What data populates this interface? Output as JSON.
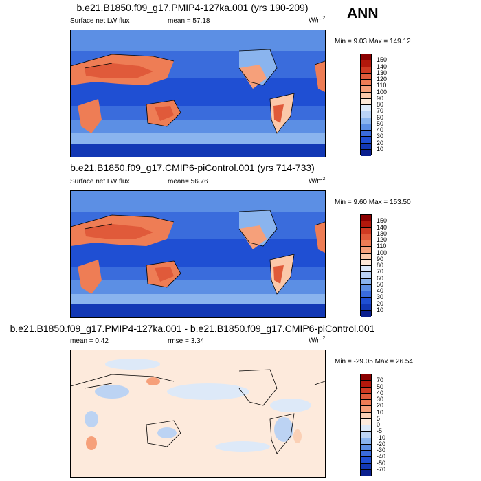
{
  "season": "ANN",
  "panels": [
    {
      "title": "b.e21.B1850.f09_g17.PMIP4-127ka.001 (yrs 190-209)",
      "left_label": "Surface net LW flux",
      "center_label": "mean =   57.18",
      "units": "W/m",
      "units_sup": "2",
      "minmax": "Min =   9.03 Max = 149.12",
      "colorbar": {
        "levels": [
          "150",
          "140",
          "130",
          "120",
          "110",
          "100",
          "90",
          "80",
          "70",
          "60",
          "50",
          "40",
          "30",
          "20",
          "10"
        ],
        "colors": [
          "#8b0000",
          "#b2180b",
          "#cf3a22",
          "#e05a3a",
          "#ee7d55",
          "#f6a07a",
          "#fbc8a9",
          "#fde8d8",
          "#dce9fa",
          "#b9d2f6",
          "#8ab4ee",
          "#5c8fe4",
          "#3a6cdc",
          "#1f4fd3",
          "#1238b5",
          "#0a1f8f"
        ]
      }
    },
    {
      "title": "b.e21.B1850.f09_g17.CMIP6-piControl.001 (yrs 714-733)",
      "left_label": "Surface net LW flux",
      "center_label": "mean=   56.76",
      "units": "W/m",
      "units_sup": "2",
      "minmax": "Min =   9.60 Max = 153.50",
      "colorbar": {
        "levels": [
          "150",
          "140",
          "130",
          "120",
          "110",
          "100",
          "90",
          "80",
          "70",
          "60",
          "50",
          "40",
          "30",
          "20",
          "10"
        ],
        "colors": [
          "#8b0000",
          "#b2180b",
          "#cf3a22",
          "#e05a3a",
          "#ee7d55",
          "#f6a07a",
          "#fbc8a9",
          "#fde8d8",
          "#dce9fa",
          "#b9d2f6",
          "#8ab4ee",
          "#5c8fe4",
          "#3a6cdc",
          "#1f4fd3",
          "#1238b5",
          "#0a1f8f"
        ]
      }
    },
    {
      "title": "b.e21.B1850.f09_g17.PMIP4-127ka.001 - b.e21.B1850.f09_g17.CMIP6-piControl.001",
      "left_label": "mean =   0.42",
      "center_label": "rmse =   3.34",
      "units": "W/m",
      "units_sup": "2",
      "minmax": "Min = -29.05 Max =  26.54",
      "colorbar": {
        "levels": [
          "70",
          "50",
          "40",
          "30",
          "20",
          "10",
          "5",
          "0",
          "-5",
          "-10",
          "-20",
          "-30",
          "-40",
          "-50",
          "-70"
        ],
        "colors": [
          "#8b0000",
          "#b2180b",
          "#cf3a22",
          "#e05a3a",
          "#ee7d55",
          "#f6a07a",
          "#fbd0b5",
          "#fdeadc",
          "#dde9f8",
          "#bcd3f3",
          "#8ab4ee",
          "#5c8fe4",
          "#3a6cdc",
          "#1f4fd3",
          "#1238b5",
          "#0a1f8f"
        ]
      }
    }
  ]
}
